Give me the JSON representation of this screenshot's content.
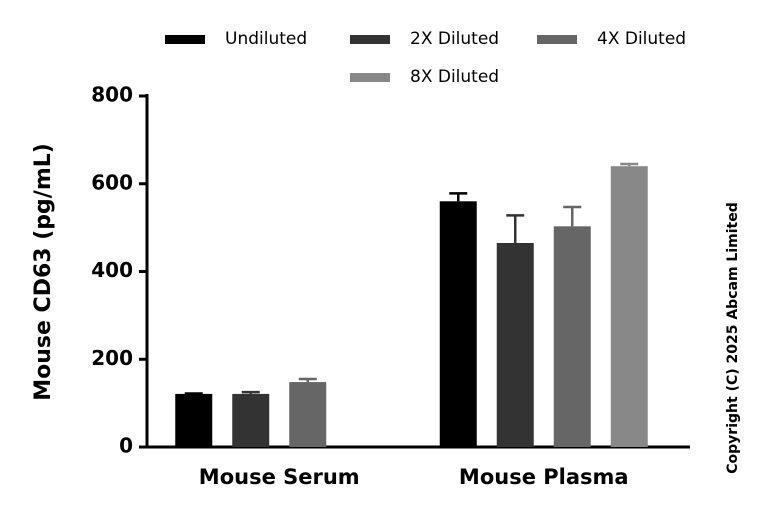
{
  "chart_data": {
    "type": "bar",
    "ylabel": "Mouse CD63 (pg/mL)",
    "annotation": "Copyright (C) 2025 Abcam Limited",
    "categories": [
      "Mouse Serum",
      "Mouse Plasma"
    ],
    "series": [
      {
        "name": "Undiluted",
        "color": "#000000",
        "values": [
          121,
          560
        ],
        "errors": [
          1,
          18
        ]
      },
      {
        "name": "2X Diluted",
        "color": "#333333",
        "values": [
          121,
          465
        ],
        "errors": [
          4,
          63
        ]
      },
      {
        "name": "4X Diluted",
        "color": "#666666",
        "values": [
          148,
          503
        ],
        "errors": [
          7,
          44
        ]
      },
      {
        "name": "8X Diluted",
        "color": "#888888",
        "values": [
          null,
          640
        ],
        "errors": [
          null,
          5
        ]
      }
    ],
    "ylim": [
      0,
      800
    ],
    "yticks": [
      0,
      200,
      400,
      600,
      800
    ],
    "grid": false,
    "legend": "top"
  }
}
